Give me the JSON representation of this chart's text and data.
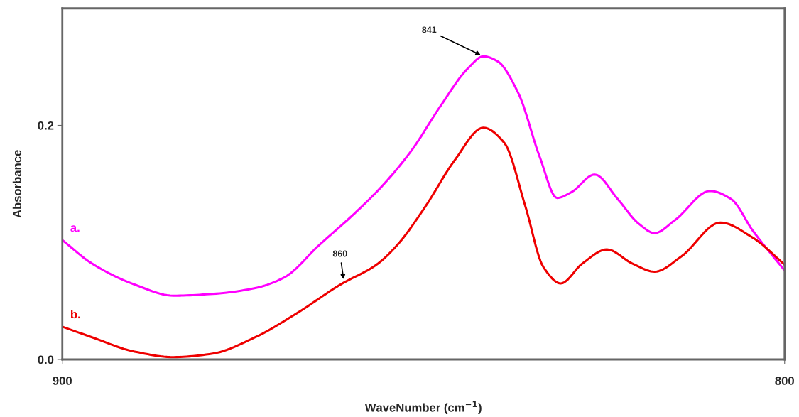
{
  "chart_data": {
    "type": "line",
    "xlabel": "WaveNumber (cm$^{−1}$)",
    "ylabel": "Absorbance",
    "xlim": [
      900,
      800
    ],
    "xticks": [
      900,
      800
    ],
    "ylim": [
      0,
      0.3
    ],
    "yticks": [
      {
        "value": 0,
        "label": "0.0"
      },
      0.2
    ],
    "grid": false,
    "legend": false,
    "marker": "none",
    "line_style": "solid",
    "annotations": [
      {
        "text": "841",
        "x": 841.7,
        "y": 0.259
      },
      {
        "text": "860",
        "x": 861,
        "y": 0.066
      }
    ],
    "series": [
      {
        "name": "a.",
        "color": "#ff00ff",
        "x": [
          900,
          895.9,
          890,
          884.6,
          879.2,
          873.3,
          869.3,
          864.4,
          859.5,
          855.6,
          851.6,
          847.7,
          843.8,
          841.7,
          839.8,
          836.9,
          833.9,
          831.5,
          829.5,
          826.3,
          823.1,
          820.2,
          818.0,
          815.2,
          810.3,
          807.4,
          804.4,
          800
        ],
        "values": [
          0.102,
          0.082,
          0.064,
          0.0545,
          0.056,
          0.061,
          0.07,
          0.098,
          0.125,
          0.149,
          0.179,
          0.216,
          0.249,
          0.259,
          0.255,
          0.228,
          0.173,
          0.138,
          0.143,
          0.158,
          0.137,
          0.116,
          0.108,
          0.119,
          0.144,
          0.137,
          0.11,
          0.076
        ]
      },
      {
        "name": "b.",
        "color": "#ee0000",
        "x": [
          900,
          895.9,
          890,
          884.6,
          879.2,
          873.3,
          867.4,
          861.5,
          856.5,
          853.6,
          849.7,
          845.7,
          841.7,
          838.8,
          835.9,
          833.4,
          831.0,
          828.0,
          824.6,
          821.1,
          818.0,
          814.3,
          808.9,
          804.4,
          800
        ],
        "values": [
          0.028,
          0.019,
          0.0067,
          0.002,
          0.005,
          0.019,
          0.04,
          0.064,
          0.081,
          0.098,
          0.131,
          0.17,
          0.198,
          0.185,
          0.131,
          0.079,
          0.065,
          0.082,
          0.094,
          0.082,
          0.075,
          0.088,
          0.117,
          0.104,
          0.081
        ]
      }
    ]
  }
}
